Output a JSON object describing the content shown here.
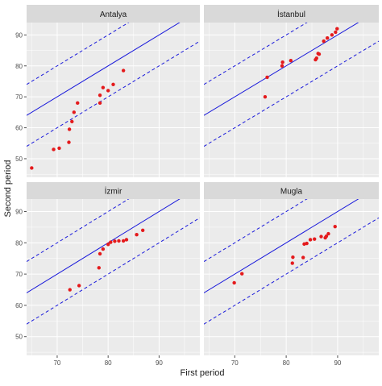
{
  "chart_data": {
    "type": "scatter",
    "xlabel": "First period",
    "ylabel": "Second period",
    "xlim": [
      64,
      98
    ],
    "ylim": [
      44,
      94
    ],
    "xticks": [
      70,
      80,
      90
    ],
    "yticks": [
      50,
      60,
      70,
      80,
      90
    ],
    "grid": true,
    "colors": {
      "points": "#e41a1c",
      "lines": "#1a1adb",
      "panel_bg": "#ebebeb",
      "strip_bg": "#d9d9d9",
      "grid": "#ffffff"
    },
    "reference_lines": [
      {
        "style": "solid",
        "slope": 1.0,
        "intercept": 0
      },
      {
        "style": "dashed",
        "slope": 1.0,
        "intercept": 10
      },
      {
        "style": "dashed",
        "slope": 1.0,
        "intercept": -10
      }
    ],
    "panels": [
      {
        "name": "Antalya",
        "points": [
          [
            65.0,
            47.0
          ],
          [
            69.3,
            53.0
          ],
          [
            70.4,
            53.4
          ],
          [
            72.3,
            55.3
          ],
          [
            72.4,
            59.5
          ],
          [
            72.9,
            62.0
          ],
          [
            73.3,
            65.0
          ],
          [
            74.0,
            68.0
          ],
          [
            78.4,
            68.0
          ],
          [
            78.4,
            70.5
          ],
          [
            79.0,
            73.0
          ],
          [
            80.0,
            72.0
          ],
          [
            81.0,
            74.0
          ],
          [
            83.0,
            78.5
          ]
        ]
      },
      {
        "name": "İstanbul",
        "points": [
          [
            75.9,
            70.0
          ],
          [
            76.3,
            76.3
          ],
          [
            79.2,
            80.0
          ],
          [
            79.3,
            81.2
          ],
          [
            80.9,
            81.7
          ],
          [
            85.7,
            82.0
          ],
          [
            85.9,
            82.5
          ],
          [
            86.2,
            84.0
          ],
          [
            86.4,
            83.8
          ],
          [
            87.3,
            88.0
          ],
          [
            88.0,
            89.0
          ],
          [
            88.9,
            90.0
          ],
          [
            89.6,
            90.9
          ],
          [
            89.9,
            92.0
          ]
        ]
      },
      {
        "name": "İzmir",
        "points": [
          [
            72.5,
            65.0
          ],
          [
            74.3,
            66.3
          ],
          [
            78.2,
            72.0
          ],
          [
            78.4,
            76.5
          ],
          [
            79.0,
            78.0
          ],
          [
            80.0,
            79.5
          ],
          [
            80.5,
            80.2
          ],
          [
            81.3,
            80.5
          ],
          [
            82.1,
            80.6
          ],
          [
            83.0,
            80.6
          ],
          [
            83.6,
            81.0
          ],
          [
            85.6,
            82.6
          ],
          [
            86.8,
            84.0
          ]
        ]
      },
      {
        "name": "Mugla",
        "points": [
          [
            69.9,
            67.2
          ],
          [
            71.4,
            70.1
          ],
          [
            81.2,
            73.5
          ],
          [
            81.3,
            75.4
          ],
          [
            83.3,
            75.3
          ],
          [
            83.5,
            79.6
          ],
          [
            84.0,
            79.8
          ],
          [
            84.7,
            81.0
          ],
          [
            85.5,
            81.2
          ],
          [
            86.8,
            82.0
          ],
          [
            87.6,
            81.6
          ],
          [
            87.8,
            82.1
          ],
          [
            88.2,
            82.9
          ],
          [
            89.5,
            85.2
          ]
        ]
      }
    ]
  }
}
